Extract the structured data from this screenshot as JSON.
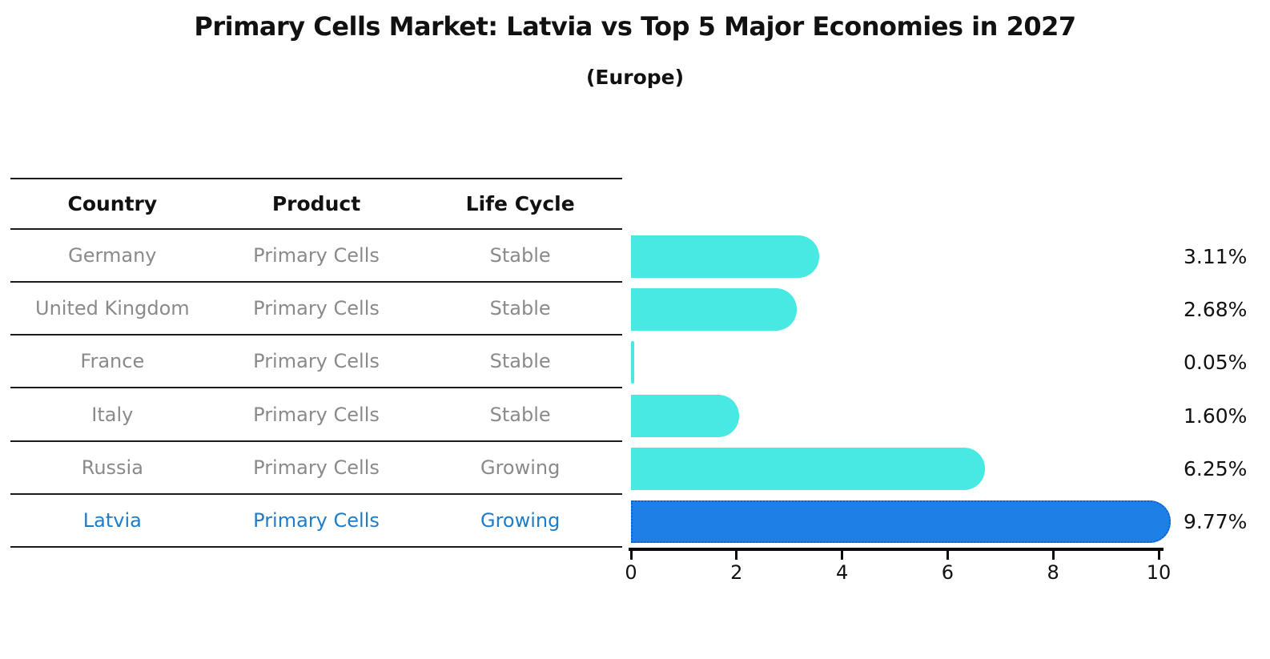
{
  "title": "Primary Cells Market: Latvia vs Top 5 Major Economies in 2027",
  "subtitle": "(Europe)",
  "table": {
    "headers": [
      "Country",
      "Product",
      "Life Cycle"
    ],
    "rows": [
      {
        "country": "Germany",
        "product": "Primary Cells",
        "life_cycle": "Stable",
        "highlighted": false
      },
      {
        "country": "United Kingdom",
        "product": "Primary Cells",
        "life_cycle": "Stable",
        "highlighted": false
      },
      {
        "country": "France",
        "product": "Primary Cells",
        "life_cycle": "Stable",
        "highlighted": false
      },
      {
        "country": "Italy",
        "product": "Primary Cells",
        "life_cycle": "Stable",
        "highlighted": false
      },
      {
        "country": "Russia",
        "product": "Primary Cells",
        "life_cycle": "Growing",
        "highlighted": false
      },
      {
        "country": "Latvia",
        "product": "Primary Cells",
        "life_cycle": "Growing",
        "highlighted": true
      }
    ]
  },
  "chart_data": {
    "type": "bar",
    "orientation": "horizontal",
    "title": "Primary Cells Market: Latvia vs Top 5 Major Economies in 2027 (Europe)",
    "categories": [
      "Germany",
      "United Kingdom",
      "France",
      "Italy",
      "Russia",
      "Latvia"
    ],
    "values": [
      3.11,
      2.68,
      0.05,
      1.6,
      6.25,
      9.77
    ],
    "value_labels": [
      "3.11%",
      "2.68%",
      "0.05%",
      "1.60%",
      "6.25%",
      "9.77%"
    ],
    "unit_suffix": "%",
    "xlim": [
      0,
      10
    ],
    "x_ticks": [
      0,
      2,
      4,
      6,
      8,
      10
    ],
    "grid": false,
    "legend": "none",
    "highlight_index": 5,
    "colors": {
      "bar": "#48e8e3",
      "highlight_bar": "#1e7fe5",
      "highlight_border": "#0e5fd8",
      "highlight_text": "#1e7cc9",
      "row_text": "#8a8a8a",
      "axis": "#0a0a0a"
    }
  }
}
